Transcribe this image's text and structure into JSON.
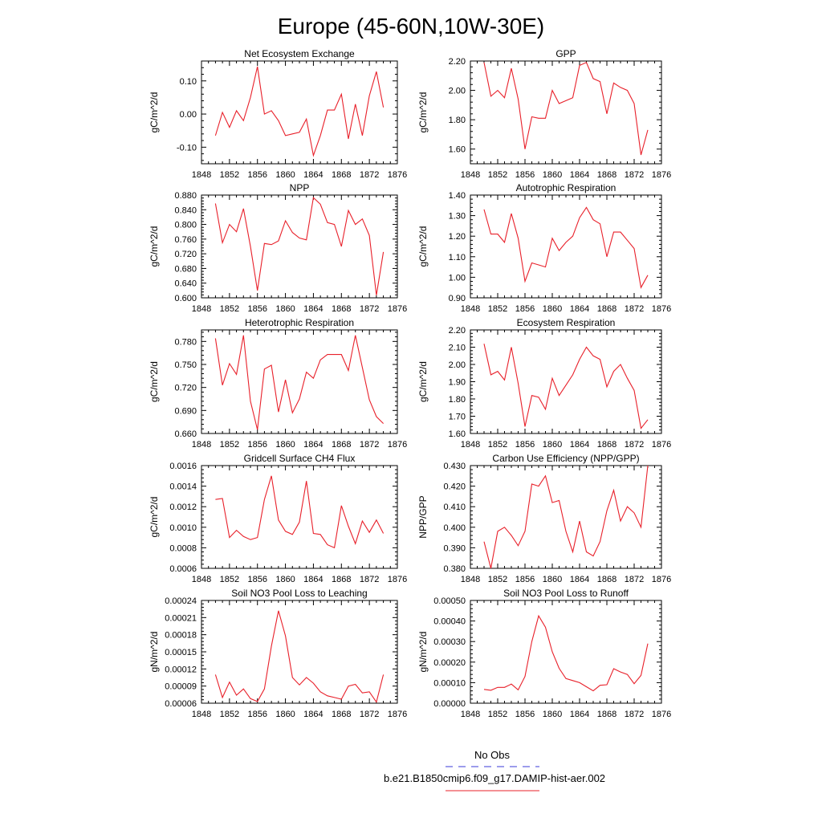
{
  "page_title": "Europe (45-60N,10W-30E)",
  "legend": {
    "obs_label": "No Obs",
    "obs_color": "#3a3ad8",
    "model_label": "b.e21.B1850cmip6.f09_g17.DAMIP-hist-aer.002",
    "model_color": "#e8202a"
  },
  "chart_data": [
    {
      "type": "line",
      "title": "Net Ecosystem Exchange",
      "ylabel": "gC/m^2/d",
      "xlabel": "",
      "xlim": [
        1848,
        1876
      ],
      "ylim": [
        -0.15,
        0.16
      ],
      "xticks": [
        1848,
        1852,
        1856,
        1860,
        1864,
        1868,
        1872,
        1876
      ],
      "yticks": [
        "-0.10",
        "0.00",
        "0.10"
      ],
      "series": [
        {
          "x": [
            1850,
            1851,
            1852,
            1853,
            1854,
            1855,
            1856,
            1857,
            1858,
            1859,
            1860,
            1861,
            1862,
            1863,
            1864,
            1865,
            1866,
            1867,
            1868,
            1869,
            1870,
            1871,
            1872,
            1873,
            1874
          ],
          "values": [
            -0.065,
            0.005,
            -0.04,
            0.01,
            -0.02,
            0.05,
            0.143,
            0.0,
            0.01,
            -0.02,
            -0.065,
            -0.06,
            -0.055,
            -0.015,
            -0.125,
            -0.065,
            0.012,
            0.012,
            0.06,
            -0.075,
            0.03,
            -0.065,
            0.055,
            0.128,
            0.02
          ]
        }
      ]
    },
    {
      "type": "line",
      "title": "GPP",
      "ylabel": "gC/m^2/d",
      "xlabel": "",
      "xlim": [
        1848,
        1876
      ],
      "ylim": [
        1.5,
        2.2
      ],
      "xticks": [
        1848,
        1852,
        1856,
        1860,
        1864,
        1868,
        1872,
        1876
      ],
      "yticks": [
        "1.60",
        "1.80",
        "2.00",
        "2.20"
      ],
      "series": [
        {
          "x": [
            1850,
            1851,
            1852,
            1853,
            1854,
            1855,
            1856,
            1857,
            1858,
            1859,
            1860,
            1861,
            1862,
            1863,
            1864,
            1865,
            1866,
            1867,
            1868,
            1869,
            1870,
            1871,
            1872,
            1873,
            1874
          ],
          "values": [
            2.19,
            1.96,
            2.0,
            1.95,
            2.15,
            1.94,
            1.6,
            1.82,
            1.81,
            1.81,
            2.0,
            1.91,
            1.93,
            1.95,
            2.17,
            2.19,
            2.08,
            2.06,
            1.84,
            2.05,
            2.02,
            2.0,
            1.91,
            1.56,
            1.73
          ]
        }
      ]
    },
    {
      "type": "line",
      "title": "NPP",
      "ylabel": "gC/m^2/d",
      "xlabel": "",
      "xlim": [
        1848,
        1876
      ],
      "ylim": [
        0.6,
        0.88
      ],
      "xticks": [
        1848,
        1852,
        1856,
        1860,
        1864,
        1868,
        1872,
        1876
      ],
      "yticks": [
        "0.600",
        "0.640",
        "0.680",
        "0.720",
        "0.760",
        "0.800",
        "0.840",
        "0.880"
      ],
      "series": [
        {
          "x": [
            1850,
            1851,
            1852,
            1853,
            1854,
            1855,
            1856,
            1857,
            1858,
            1859,
            1860,
            1861,
            1862,
            1863,
            1864,
            1865,
            1866,
            1867,
            1868,
            1869,
            1870,
            1871,
            1872,
            1873,
            1874
          ],
          "values": [
            0.857,
            0.75,
            0.8,
            0.78,
            0.843,
            0.74,
            0.62,
            0.748,
            0.745,
            0.755,
            0.81,
            0.778,
            0.763,
            0.758,
            0.873,
            0.855,
            0.805,
            0.8,
            0.74,
            0.838,
            0.8,
            0.815,
            0.77,
            0.607,
            0.725
          ]
        }
      ]
    },
    {
      "type": "line",
      "title": "Autotrophic Respiration",
      "ylabel": "gC/m^2/d",
      "xlabel": "",
      "xlim": [
        1848,
        1876
      ],
      "ylim": [
        0.9,
        1.4
      ],
      "xticks": [
        1848,
        1852,
        1856,
        1860,
        1864,
        1868,
        1872,
        1876
      ],
      "yticks": [
        "0.90",
        "1.00",
        "1.10",
        "1.20",
        "1.30",
        "1.40"
      ],
      "series": [
        {
          "x": [
            1850,
            1851,
            1852,
            1853,
            1854,
            1855,
            1856,
            1857,
            1858,
            1859,
            1860,
            1861,
            1862,
            1863,
            1864,
            1865,
            1866,
            1867,
            1868,
            1869,
            1870,
            1871,
            1872,
            1873,
            1874
          ],
          "values": [
            1.33,
            1.21,
            1.21,
            1.17,
            1.31,
            1.19,
            0.98,
            1.07,
            1.06,
            1.05,
            1.19,
            1.13,
            1.17,
            1.2,
            1.29,
            1.34,
            1.28,
            1.26,
            1.1,
            1.22,
            1.22,
            1.18,
            1.14,
            0.95,
            1.01
          ]
        }
      ]
    },
    {
      "type": "line",
      "title": "Heterotrophic Respiration",
      "ylabel": "gC/m^2/d",
      "xlabel": "",
      "xlim": [
        1848,
        1876
      ],
      "ylim": [
        0.66,
        0.795
      ],
      "xticks": [
        1848,
        1852,
        1856,
        1860,
        1864,
        1868,
        1872,
        1876
      ],
      "yticks": [
        "0.660",
        "0.690",
        "0.720",
        "0.750",
        "0.780"
      ],
      "series": [
        {
          "x": [
            1850,
            1851,
            1852,
            1853,
            1854,
            1855,
            1856,
            1857,
            1858,
            1859,
            1860,
            1861,
            1862,
            1863,
            1864,
            1865,
            1866,
            1867,
            1868,
            1869,
            1870,
            1871,
            1872,
            1873,
            1874
          ],
          "values": [
            0.784,
            0.723,
            0.751,
            0.737,
            0.788,
            0.702,
            0.665,
            0.744,
            0.749,
            0.688,
            0.73,
            0.687,
            0.705,
            0.74,
            0.732,
            0.756,
            0.763,
            0.763,
            0.763,
            0.742,
            0.788,
            0.746,
            0.704,
            0.682,
            0.673
          ]
        }
      ]
    },
    {
      "type": "line",
      "title": "Ecosystem Respiration",
      "ylabel": "gC/m^2/d",
      "xlabel": "",
      "xlim": [
        1848,
        1876
      ],
      "ylim": [
        1.6,
        2.2
      ],
      "xticks": [
        1848,
        1852,
        1856,
        1860,
        1864,
        1868,
        1872,
        1876
      ],
      "yticks": [
        "1.60",
        "1.70",
        "1.80",
        "1.90",
        "2.00",
        "2.10",
        "2.20"
      ],
      "series": [
        {
          "x": [
            1850,
            1851,
            1852,
            1853,
            1854,
            1855,
            1856,
            1857,
            1858,
            1859,
            1860,
            1861,
            1862,
            1863,
            1864,
            1865,
            1866,
            1867,
            1868,
            1869,
            1870,
            1871,
            1872,
            1873,
            1874
          ],
          "values": [
            2.12,
            1.94,
            1.96,
            1.91,
            2.1,
            1.89,
            1.64,
            1.82,
            1.81,
            1.74,
            1.92,
            1.82,
            1.88,
            1.94,
            2.03,
            2.1,
            2.05,
            2.03,
            1.87,
            1.96,
            2.0,
            1.92,
            1.85,
            1.63,
            1.68
          ]
        }
      ]
    },
    {
      "type": "line",
      "title": "Gridcell Surface CH4 Flux",
      "ylabel": "gC/m^2/d",
      "xlabel": "",
      "xlim": [
        1848,
        1876
      ],
      "ylim": [
        0.0006,
        0.0016
      ],
      "xticks": [
        1848,
        1852,
        1856,
        1860,
        1864,
        1868,
        1872,
        1876
      ],
      "yticks": [
        "0.0006",
        "0.0008",
        "0.0010",
        "0.0012",
        "0.0014",
        "0.0016"
      ],
      "series": [
        {
          "x": [
            1850,
            1851,
            1852,
            1853,
            1854,
            1855,
            1856,
            1857,
            1858,
            1859,
            1860,
            1861,
            1862,
            1863,
            1864,
            1865,
            1866,
            1867,
            1868,
            1869,
            1870,
            1871,
            1872,
            1873,
            1874
          ],
          "values": [
            0.00127,
            0.00128,
            0.0009,
            0.00097,
            0.00091,
            0.00088,
            0.0009,
            0.00127,
            0.0015,
            0.00107,
            0.00096,
            0.00093,
            0.00105,
            0.00145,
            0.00094,
            0.00093,
            0.00083,
            0.0008,
            0.00121,
            0.00101,
            0.00084,
            0.00106,
            0.00095,
            0.00107,
            0.00094
          ]
        }
      ]
    },
    {
      "type": "line",
      "title": "Carbon Use Efficiency (NPP/GPP)",
      "ylabel": "NPP/GPP",
      "xlabel": "",
      "xlim": [
        1848,
        1876
      ],
      "ylim": [
        0.38,
        0.43
      ],
      "xticks": [
        1848,
        1852,
        1856,
        1860,
        1864,
        1868,
        1872,
        1876
      ],
      "yticks": [
        "0.380",
        "0.390",
        "0.400",
        "0.410",
        "0.420",
        "0.430"
      ],
      "series": [
        {
          "x": [
            1850,
            1851,
            1852,
            1853,
            1854,
            1855,
            1856,
            1857,
            1858,
            1859,
            1860,
            1861,
            1862,
            1863,
            1864,
            1865,
            1866,
            1867,
            1868,
            1869,
            1870,
            1871,
            1872,
            1873,
            1874
          ],
          "values": [
            0.393,
            0.38,
            0.398,
            0.4,
            0.396,
            0.391,
            0.398,
            0.421,
            0.42,
            0.425,
            0.412,
            0.413,
            0.398,
            0.388,
            0.403,
            0.388,
            0.386,
            0.393,
            0.408,
            0.418,
            0.403,
            0.41,
            0.407,
            0.4,
            0.43
          ]
        }
      ]
    },
    {
      "type": "line",
      "title": "Soil NO3 Pool Loss to Leaching",
      "ylabel": "gN/m^2/d",
      "xlabel": "",
      "xlim": [
        1848,
        1876
      ],
      "ylim": [
        6e-05,
        0.00024
      ],
      "xticks": [
        1848,
        1852,
        1856,
        1860,
        1864,
        1868,
        1872,
        1876
      ],
      "yticks": [
        "0.00006",
        "0.00009",
        "0.00012",
        "0.00015",
        "0.00018",
        "0.00021",
        "0.00024"
      ],
      "series": [
        {
          "x": [
            1850,
            1851,
            1852,
            1853,
            1854,
            1855,
            1856,
            1857,
            1858,
            1859,
            1860,
            1861,
            1862,
            1863,
            1864,
            1865,
            1866,
            1867,
            1868,
            1869,
            1870,
            1871,
            1872,
            1873,
            1874
          ],
          "values": [
            0.00011,
            7e-05,
            9.7e-05,
            7.4e-05,
            8.5e-05,
            6.8e-05,
            6.3e-05,
            8.5e-05,
            0.00016,
            0.000222,
            0.000178,
            0.000105,
            9.2e-05,
            0.000105,
            9.5e-05,
            8e-05,
            7.3e-05,
            7e-05,
            6.7e-05,
            9e-05,
            9.3e-05,
            7.8e-05,
            8e-05,
            6.2e-05,
            0.00011
          ]
        }
      ]
    },
    {
      "type": "line",
      "title": "Soil NO3 Pool Loss to Runoff",
      "ylabel": "gN/m^2/d",
      "xlabel": "",
      "xlim": [
        1848,
        1876
      ],
      "ylim": [
        0.0,
        0.0005
      ],
      "xticks": [
        1848,
        1852,
        1856,
        1860,
        1864,
        1868,
        1872,
        1876
      ],
      "yticks": [
        "0.00000",
        "0.00010",
        "0.00020",
        "0.00030",
        "0.00040",
        "0.00050"
      ],
      "series": [
        {
          "x": [
            1850,
            1851,
            1852,
            1853,
            1854,
            1855,
            1856,
            1857,
            1858,
            1859,
            1860,
            1861,
            1862,
            1863,
            1864,
            1865,
            1866,
            1867,
            1868,
            1869,
            1870,
            1871,
            1872,
            1873,
            1874
          ],
          "values": [
            6.7e-05,
            6.3e-05,
            7.7e-05,
            7.7e-05,
            9.3e-05,
            6.5e-05,
            0.00013,
            0.0003,
            0.000425,
            0.00037,
            0.00025,
            0.00017,
            0.00012,
            0.00011,
            0.0001,
            8e-05,
            6e-05,
            8.7e-05,
            9e-05,
            0.000168,
            0.000152,
            0.00014,
            9.5e-05,
            0.000135,
            0.00029
          ]
        }
      ]
    }
  ]
}
